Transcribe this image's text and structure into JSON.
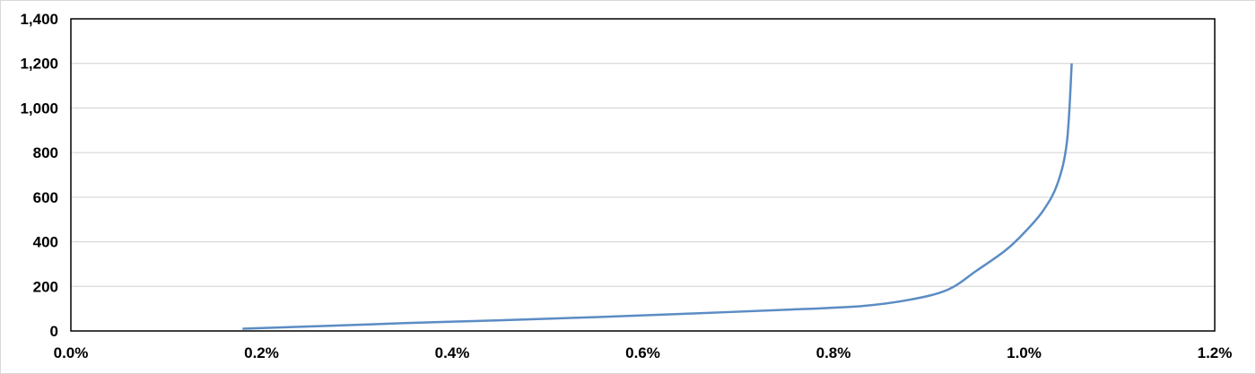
{
  "chart_data": {
    "type": "line",
    "title": "",
    "xlabel": "",
    "ylabel": "",
    "xlim": [
      0.0,
      1.2
    ],
    "ylim": [
      0,
      1400
    ],
    "x_unit": "%",
    "x_ticks": [
      "0.0%",
      "0.2%",
      "0.4%",
      "0.6%",
      "0.8%",
      "1.0%",
      "1.2%"
    ],
    "y_ticks": [
      "0",
      "200",
      "400",
      "600",
      "800",
      "1,000",
      "1,200",
      "1,400"
    ],
    "grid": "horizontal",
    "legend": "none",
    "series": [
      {
        "color": "#5b8cc4",
        "x": [
          0.18,
          0.25,
          0.35,
          0.45,
          0.55,
          0.65,
          0.75,
          0.83,
          0.88,
          0.92,
          0.95,
          0.98,
          1.0,
          1.02,
          1.035,
          1.045,
          1.05
        ],
        "y": [
          10,
          20,
          35,
          48,
          62,
          78,
          95,
          112,
          140,
          185,
          270,
          360,
          440,
          540,
          660,
          850,
          1200
        ]
      }
    ]
  }
}
